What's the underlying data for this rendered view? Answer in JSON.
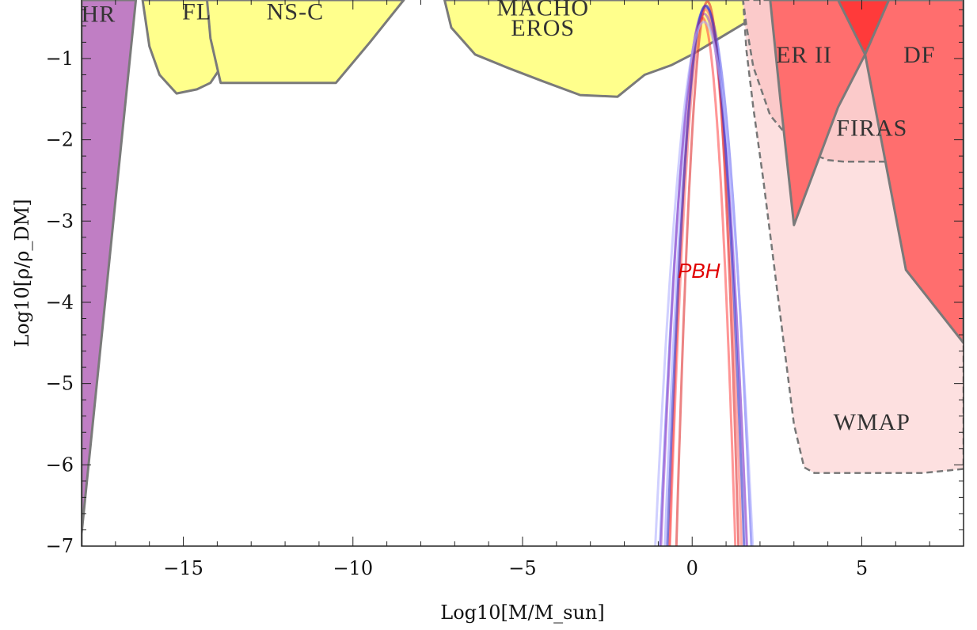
{
  "chart_data": {
    "type": "area",
    "xlabel": "Log10[M/M_sun]",
    "ylabel": "Log10[ρ/ρ_DM]",
    "xlim": [
      -18,
      8
    ],
    "ylim": [
      -7,
      -0.28
    ],
    "x_ticks": [
      -15,
      -10,
      -5,
      0,
      5
    ],
    "y_ticks": [
      -7,
      -6,
      -5,
      -4,
      -3,
      -2,
      -1
    ],
    "x_tick_labels": [
      "−15",
      "−10",
      "−5",
      "0",
      "5"
    ],
    "y_tick_labels": [
      "−7",
      "−6",
      "−5",
      "−4",
      "−3",
      "−2",
      "−1"
    ],
    "x_minor_step": 1,
    "y_minor_step": 0.2,
    "grid": false,
    "regions": [
      {
        "name": "HR",
        "color": "#c07ec4",
        "polygon": [
          [
            -18,
            -7
          ],
          [
            -18,
            -0.28
          ],
          [
            -16.4,
            -0.28
          ],
          [
            -18,
            -6.85
          ]
        ]
      },
      {
        "name": "FL",
        "color": "#ffff8c",
        "polygon": [
          [
            -16.2,
            -0.28
          ],
          [
            -12.5,
            -0.28
          ],
          [
            -13.4,
            -0.8
          ],
          [
            -14.2,
            -1.3
          ],
          [
            -14.6,
            -1.38
          ],
          [
            -15.2,
            -1.43
          ],
          [
            -15.7,
            -1.2
          ],
          [
            -16,
            -0.85
          ]
        ]
      },
      {
        "name": "FL-overlap",
        "color": "#ffff3a",
        "polygon": [
          [
            -14.3,
            -0.28
          ],
          [
            -12.5,
            -0.28
          ],
          [
            -13.4,
            -0.8
          ],
          [
            -14,
            -1.05
          ]
        ]
      },
      {
        "name": "NS-C",
        "color": "#ffff8c",
        "polygon": [
          [
            -14.3,
            -0.28
          ],
          [
            -8.5,
            -0.28
          ],
          [
            -9.5,
            -0.8
          ],
          [
            -10.5,
            -1.3
          ],
          [
            -13.9,
            -1.3
          ],
          [
            -14.2,
            -0.75
          ]
        ]
      },
      {
        "name": "MACHO EROS",
        "color": "#ffff8c",
        "polygon": [
          [
            -7.3,
            -0.28
          ],
          [
            2.5,
            -0.28
          ],
          [
            1.8,
            -0.5
          ],
          [
            0.8,
            -0.75
          ],
          [
            0,
            -0.95
          ],
          [
            -0.6,
            -1.08
          ],
          [
            -1.4,
            -1.2
          ],
          [
            -2.2,
            -1.47
          ],
          [
            -3.3,
            -1.45
          ],
          [
            -4.4,
            -1.28
          ],
          [
            -5.4,
            -1.12
          ],
          [
            -6.4,
            -0.95
          ],
          [
            -7.1,
            -0.62
          ]
        ]
      },
      {
        "name": "WMAP",
        "color": "#fde0e0",
        "border": "dashed",
        "polygon": [
          [
            1.5,
            -0.28
          ],
          [
            8,
            -0.28
          ],
          [
            8,
            -6.05
          ],
          [
            6.8,
            -6.1
          ],
          [
            3.6,
            -6.1
          ],
          [
            3.3,
            -6.03
          ],
          [
            3,
            -5.5
          ],
          [
            2.7,
            -4.5
          ],
          [
            2.4,
            -3.5
          ],
          [
            2.1,
            -2.5
          ],
          [
            1.8,
            -1.6
          ],
          [
            1.6,
            -0.9
          ]
        ]
      },
      {
        "name": "FIRAS",
        "color": "#fbcaca",
        "border": "dashed",
        "polygon": [
          [
            1.5,
            -0.28
          ],
          [
            8,
            -0.28
          ],
          [
            8,
            -2.3
          ],
          [
            6.5,
            -2.27
          ],
          [
            4.5,
            -2.27
          ],
          [
            4,
            -2.25
          ],
          [
            3.1,
            -2.1
          ],
          [
            2.3,
            -1.7
          ],
          [
            1.8,
            -1.1
          ],
          [
            1.6,
            -0.6
          ]
        ]
      },
      {
        "name": "ER II",
        "color": "#ff6e6e",
        "polygon": [
          [
            2.3,
            -0.28
          ],
          [
            4.5,
            -0.28
          ],
          [
            5.1,
            -0.95
          ],
          [
            4.3,
            -1.6
          ],
          [
            3,
            -3.05
          ],
          [
            2.6,
            -1.5
          ]
        ]
      },
      {
        "name": "DF",
        "color": "#ff6e6e",
        "polygon": [
          [
            4.5,
            -0.28
          ],
          [
            8,
            -0.28
          ],
          [
            8,
            -4.5
          ],
          [
            6.3,
            -3.6
          ],
          [
            5.1,
            -0.95
          ]
        ]
      },
      {
        "name": "DF-overlap",
        "color": "#ff3a3a",
        "polygon": [
          [
            4.3,
            -0.28
          ],
          [
            5.8,
            -0.28
          ],
          [
            5.1,
            -0.95
          ]
        ]
      }
    ],
    "region_labels": [
      {
        "text": "HR",
        "x": -17.5,
        "y": -0.55
      },
      {
        "text": "FL",
        "x": -14.6,
        "y": -0.52
      },
      {
        "text": "NS-C",
        "x": -11.7,
        "y": -0.52
      },
      {
        "text": "MACHO",
        "x": -4.4,
        "y": -0.47
      },
      {
        "text": "EROS",
        "x": -4.4,
        "y": -0.72
      },
      {
        "text": "ER II",
        "x": 3.3,
        "y": -1.05
      },
      {
        "text": "DF",
        "x": 6.7,
        "y": -1.05
      },
      {
        "text": "FIRAS",
        "x": 5.3,
        "y": -1.95
      },
      {
        "text": "WMAP",
        "x": 5.3,
        "y": -5.57
      }
    ],
    "series_label": {
      "text": "PBH",
      "x": 0.2,
      "y": -3.7,
      "color": "#e00000"
    },
    "series": [
      {
        "peak_x": 0.4,
        "peak_y": -0.35,
        "width": 0.33,
        "color": "#8c8cff",
        "opacity": 0.5
      },
      {
        "peak_x": 0.4,
        "peak_y": -0.37,
        "width": 0.37,
        "color": "#5a5aee",
        "opacity": 0.55
      },
      {
        "peak_x": 0.4,
        "peak_y": -0.4,
        "width": 0.29,
        "color": "#ff7070",
        "opacity": 0.6
      },
      {
        "peak_x": 0.35,
        "peak_y": -0.45,
        "width": 0.35,
        "color": "#a050c8",
        "opacity": 0.6
      },
      {
        "peak_x": 0.3,
        "peak_y": -0.5,
        "width": 0.27,
        "color": "#ff4040",
        "opacity": 0.55
      },
      {
        "peak_x": 0.45,
        "peak_y": -0.3,
        "width": 0.25,
        "color": "#e03030",
        "opacity": 0.6
      },
      {
        "peak_x": 0.4,
        "peak_y": -0.35,
        "width": 0.31,
        "color": "#3030c8",
        "opacity": 0.6
      },
      {
        "peak_x": 0.35,
        "peak_y": -0.55,
        "width": 0.4,
        "color": "#b0b0ff",
        "opacity": 0.6
      }
    ]
  }
}
